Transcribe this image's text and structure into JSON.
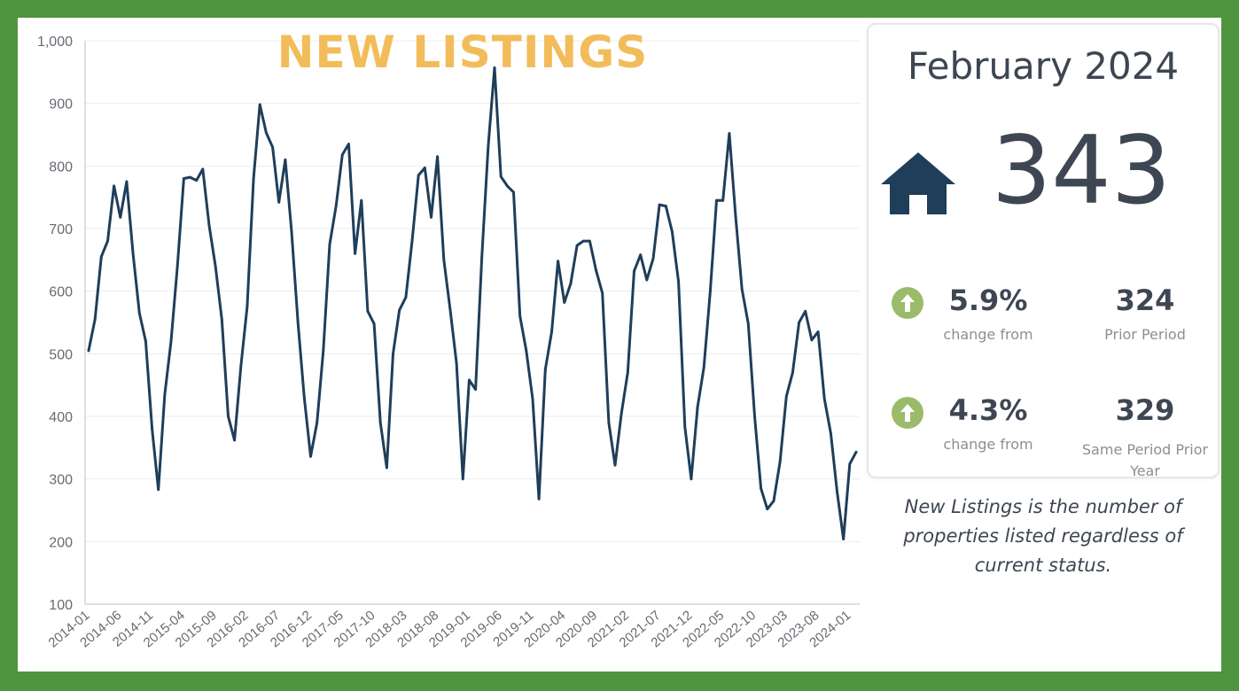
{
  "header": {
    "title": "NEW LISTINGS"
  },
  "summary": {
    "period": "February 2024",
    "value": "343",
    "icon": "house-icon",
    "stats": [
      {
        "icon": "up-arrow-icon",
        "change": "5.9%",
        "change_label": "change from",
        "compare_value": "324",
        "compare_label": "Prior Period"
      },
      {
        "icon": "up-arrow-icon",
        "change": "4.3%",
        "change_label": "change from",
        "compare_value": "329",
        "compare_label": "Same Period Prior Year"
      }
    ],
    "definition": "New Listings is the number of properties listed regardless of current status."
  },
  "colors": {
    "line": "#1f3e5a",
    "title": "#f3bc5a",
    "frame": "#4f9540",
    "arrow": "#9bbb6b",
    "house": "#1f3e5a"
  },
  "chart_data": {
    "type": "line",
    "title": "NEW LISTINGS",
    "xlabel": "",
    "ylabel": "",
    "ylim": [
      100,
      1000
    ],
    "yticks": [
      100,
      200,
      300,
      400,
      500,
      600,
      700,
      800,
      900,
      1000
    ],
    "ytick_labels": [
      "100",
      "200",
      "300",
      "400",
      "500",
      "600",
      "700",
      "800",
      "900",
      "1,000"
    ],
    "x_start": "2014-01",
    "tick_labels": [
      "2014-01",
      "2014-06",
      "2014-11",
      "2015-04",
      "2015-09",
      "2016-02",
      "2016-07",
      "2016-12",
      "2017-05",
      "2017-10",
      "2018-03",
      "2018-08",
      "2019-01",
      "2019-06",
      "2019-11",
      "2020-04",
      "2020-09",
      "2021-02",
      "2021-07",
      "2021-12",
      "2022-05",
      "2022-10",
      "2023-03",
      "2023-08",
      "2024-01"
    ],
    "grid": true,
    "series": [
      {
        "values": [
          505,
          555,
          655,
          680,
          768,
          718,
          775,
          660,
          565,
          520,
          380,
          283,
          435,
          520,
          640,
          780,
          782,
          777,
          795,
          705,
          640,
          555,
          400,
          362,
          480,
          575,
          780,
          898,
          853,
          830,
          742,
          810,
          695,
          550,
          430,
          336,
          390,
          505,
          675,
          735,
          818,
          835,
          660,
          745,
          568,
          548,
          390,
          318,
          500,
          570,
          590,
          680,
          785,
          797,
          718,
          815,
          650,
          570,
          485,
          300,
          458,
          443,
          655,
          832,
          957,
          783,
          768,
          758,
          560,
          505,
          428,
          268,
          475,
          535,
          648,
          582,
          612,
          673,
          680,
          680,
          633,
          597,
          390,
          322,
          405,
          470,
          632,
          658,
          618,
          652,
          738,
          736,
          695,
          615,
          383,
          300,
          415,
          478,
          600,
          745,
          745,
          852,
          720,
          603,
          548,
          400,
          285,
          252,
          265,
          327,
          432,
          470,
          550,
          568,
          522,
          535,
          428,
          373,
          280,
          204,
          324,
          343
        ]
      }
    ]
  }
}
